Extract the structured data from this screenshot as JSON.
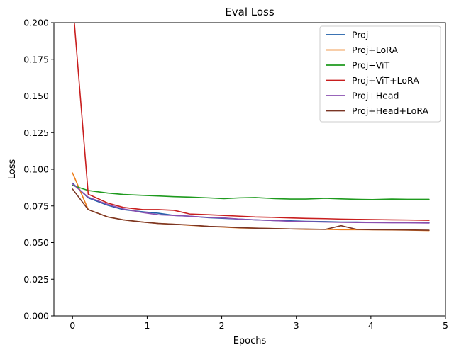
{
  "chart_data": {
    "type": "line",
    "title": "Eval Loss",
    "xlabel": "Epochs",
    "ylabel": "Loss",
    "xlim": [
      -0.25,
      5.0
    ],
    "ylim": [
      0.0,
      0.2
    ],
    "xticks": [
      0,
      1,
      2,
      3,
      4,
      5
    ],
    "yticks": [
      0.0,
      0.025,
      0.05,
      0.075,
      0.1,
      0.125,
      0.15,
      0.175,
      0.2
    ],
    "ytick_labels": [
      "0.000",
      "0.025",
      "0.050",
      "0.075",
      "0.100",
      "0.125",
      "0.150",
      "0.175",
      "0.200"
    ],
    "grid": false,
    "legend_position": "top-right",
    "x": [
      0.0,
      0.21,
      0.47,
      0.68,
      0.94,
      1.15,
      1.36,
      1.57,
      1.82,
      2.03,
      2.24,
      2.45,
      2.71,
      2.92,
      3.13,
      3.39,
      3.6,
      3.81,
      4.02,
      4.28,
      4.49,
      4.78
    ],
    "series": [
      {
        "name": "Proj",
        "color": "#1f5fa8",
        "values": [
          0.0905,
          0.0805,
          0.0755,
          0.0725,
          0.071,
          0.07,
          0.0685,
          0.068,
          0.067,
          0.0665,
          0.066,
          0.0655,
          0.065,
          0.0648,
          0.0645,
          0.0643,
          0.064,
          0.064,
          0.0638,
          0.0637,
          0.0636,
          0.0635
        ]
      },
      {
        "name": "Proj+LoRA",
        "color": "#ee7d1a",
        "values": [
          0.0975,
          0.0725,
          0.0675,
          0.0655,
          0.064,
          0.063,
          0.0625,
          0.0618,
          0.061,
          0.0605,
          0.06,
          0.0598,
          0.0595,
          0.0593,
          0.059,
          0.059,
          0.0588,
          0.0588,
          0.0587,
          0.0586,
          0.0585,
          0.0582
        ]
      },
      {
        "name": "Proj+ViT",
        "color": "#1e9a1e",
        "values": [
          0.089,
          0.0855,
          0.0838,
          0.0828,
          0.0822,
          0.0818,
          0.0813,
          0.081,
          0.0805,
          0.08,
          0.0805,
          0.0807,
          0.08,
          0.0797,
          0.0797,
          0.0802,
          0.0798,
          0.0795,
          0.0793,
          0.0797,
          0.0795,
          0.0795
        ]
      },
      {
        "name": "Proj+ViT+LoRA",
        "color": "#c81e1e",
        "values": [
          0.215,
          0.083,
          0.077,
          0.074,
          0.0725,
          0.0725,
          0.072,
          0.0695,
          0.069,
          0.0685,
          0.068,
          0.0675,
          0.0672,
          0.0668,
          0.0665,
          0.0663,
          0.066,
          0.0658,
          0.0657,
          0.0655,
          0.0654,
          0.0652
        ]
      },
      {
        "name": "Proj+Head",
        "color": "#8a4fb0",
        "values": [
          0.09,
          0.081,
          0.076,
          0.073,
          0.0705,
          0.069,
          0.0685,
          0.068,
          0.0672,
          0.0668,
          0.066,
          0.0655,
          0.065,
          0.0645,
          0.0643,
          0.064,
          0.0638,
          0.0637,
          0.0636,
          0.0635,
          0.0635,
          0.0633
        ]
      },
      {
        "name": "Proj+Head+LoRA",
        "color": "#7a3524",
        "values": [
          0.0865,
          0.0725,
          0.0675,
          0.0655,
          0.064,
          0.063,
          0.0625,
          0.062,
          0.061,
          0.0607,
          0.0602,
          0.0598,
          0.0595,
          0.0593,
          0.0592,
          0.059,
          0.0615,
          0.059,
          0.0588,
          0.0587,
          0.0586,
          0.0584
        ]
      }
    ]
  }
}
